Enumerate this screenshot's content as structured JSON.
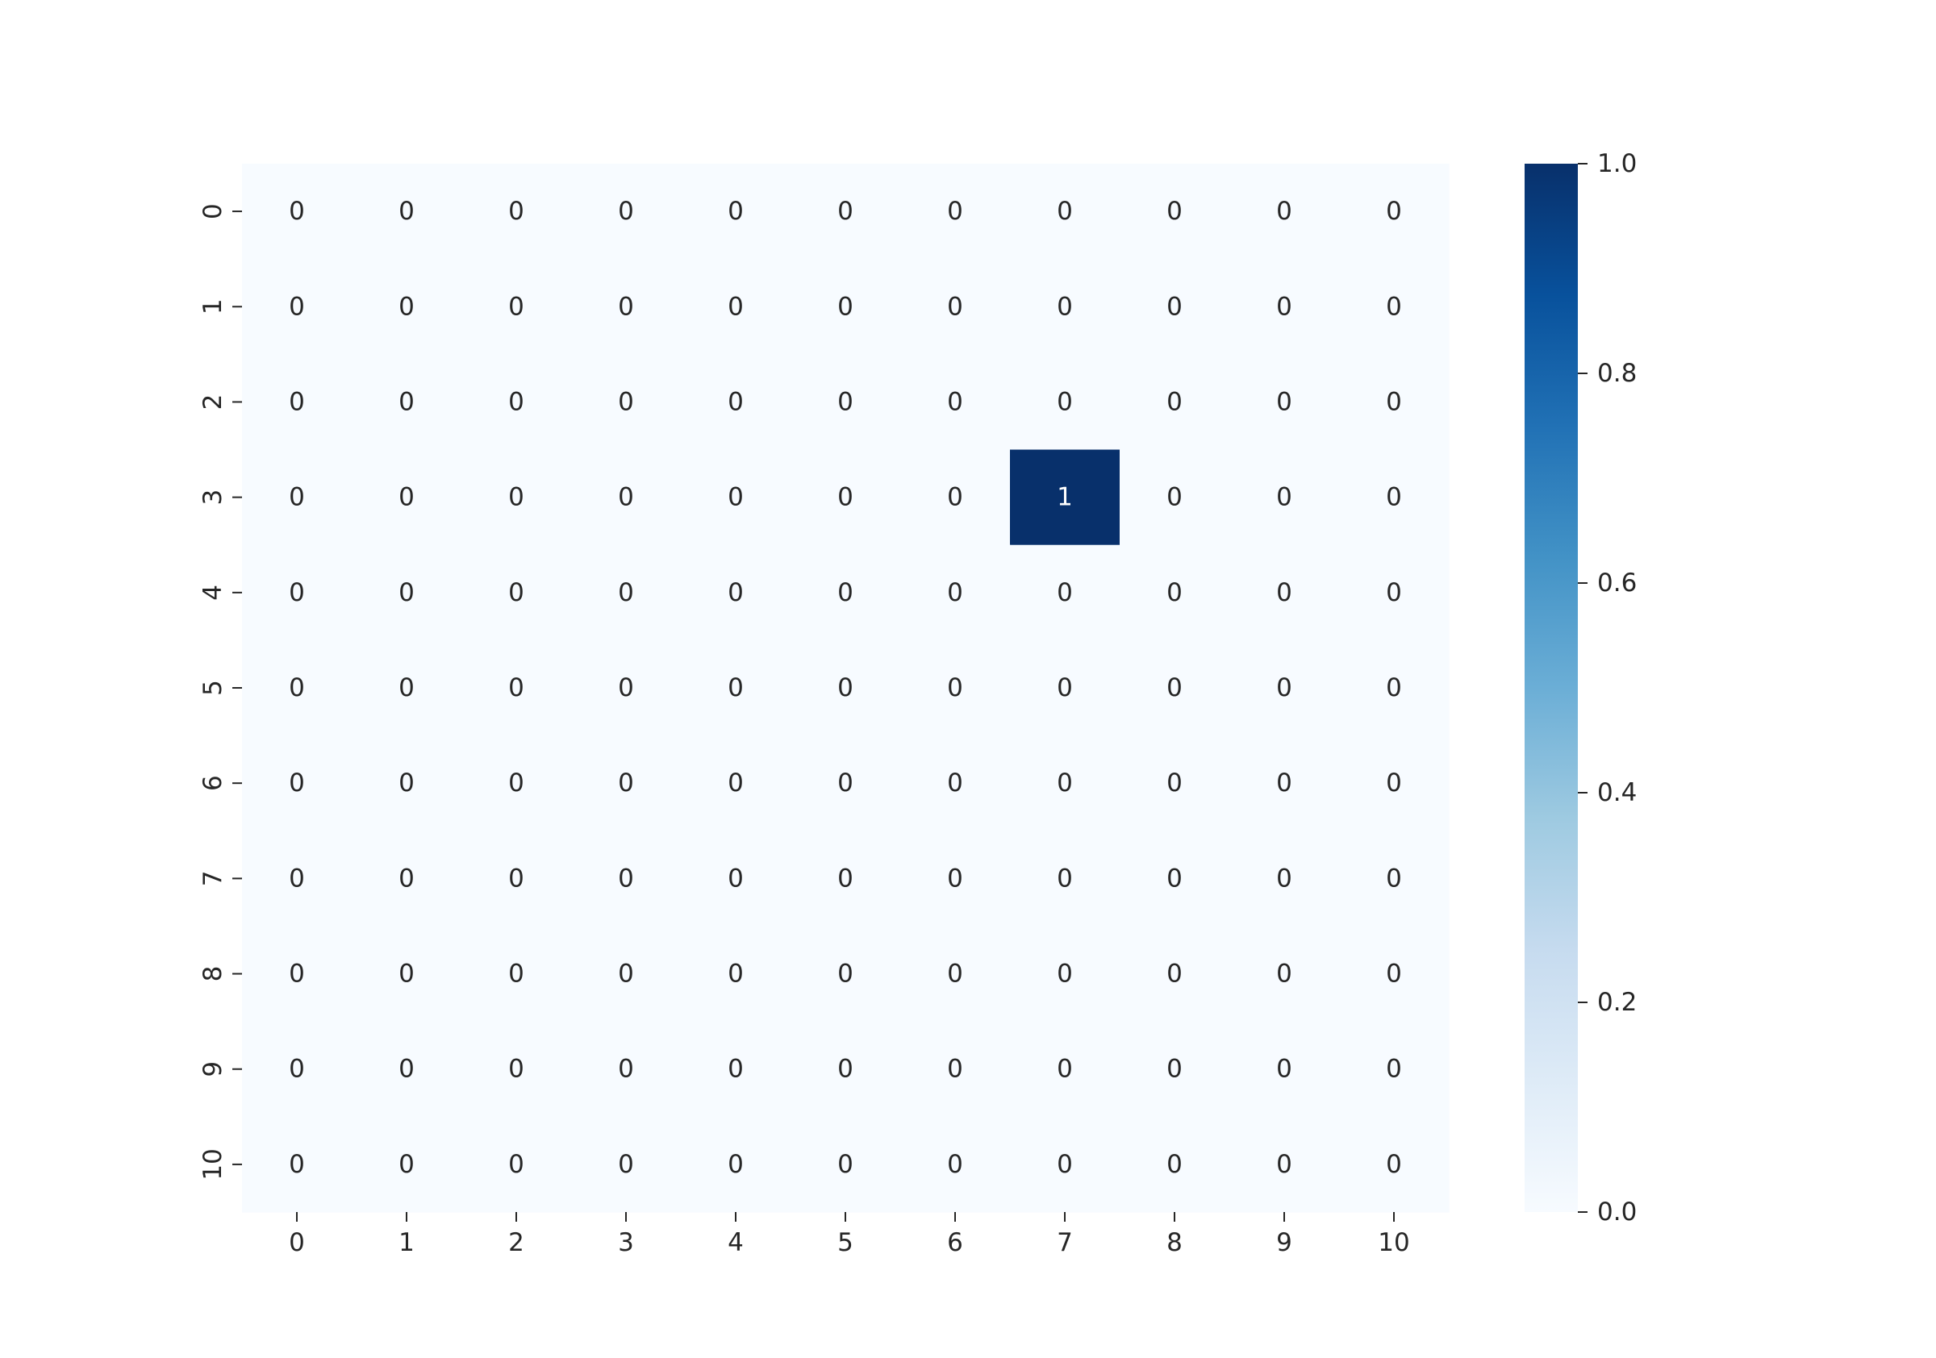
{
  "chart_data": {
    "type": "heatmap",
    "title": "",
    "xlabel": "",
    "ylabel": "",
    "x_categories": [
      "0",
      "1",
      "2",
      "3",
      "4",
      "5",
      "6",
      "7",
      "8",
      "9",
      "10"
    ],
    "y_categories": [
      "0",
      "1",
      "2",
      "3",
      "4",
      "5",
      "6",
      "7",
      "8",
      "9",
      "10"
    ],
    "values": [
      [
        0,
        0,
        0,
        0,
        0,
        0,
        0,
        0,
        0,
        0,
        0
      ],
      [
        0,
        0,
        0,
        0,
        0,
        0,
        0,
        0,
        0,
        0,
        0
      ],
      [
        0,
        0,
        0,
        0,
        0,
        0,
        0,
        0,
        0,
        0,
        0
      ],
      [
        0,
        0,
        0,
        0,
        0,
        0,
        0,
        1,
        0,
        0,
        0
      ],
      [
        0,
        0,
        0,
        0,
        0,
        0,
        0,
        0,
        0,
        0,
        0
      ],
      [
        0,
        0,
        0,
        0,
        0,
        0,
        0,
        0,
        0,
        0,
        0
      ],
      [
        0,
        0,
        0,
        0,
        0,
        0,
        0,
        0,
        0,
        0,
        0
      ],
      [
        0,
        0,
        0,
        0,
        0,
        0,
        0,
        0,
        0,
        0,
        0
      ],
      [
        0,
        0,
        0,
        0,
        0,
        0,
        0,
        0,
        0,
        0,
        0
      ],
      [
        0,
        0,
        0,
        0,
        0,
        0,
        0,
        0,
        0,
        0,
        0
      ],
      [
        0,
        0,
        0,
        0,
        0,
        0,
        0,
        0,
        0,
        0,
        0
      ]
    ],
    "annotations": true,
    "colormap": "Blues",
    "colorbar": {
      "range": [
        0.0,
        1.0
      ],
      "ticks": [
        "0.0",
        "0.2",
        "0.4",
        "0.6",
        "0.8",
        "1.0"
      ]
    },
    "colors": {
      "low": "#f7fbff",
      "high": "#08306b",
      "annotation_dark": "#262626",
      "annotation_light": "#ffffff"
    },
    "grid": false
  }
}
